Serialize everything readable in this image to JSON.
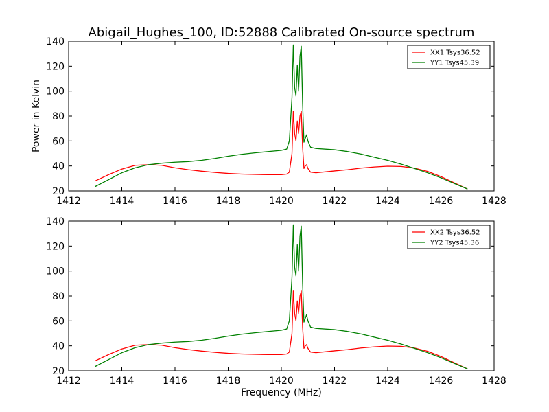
{
  "title": "Abigail_Hughes_100, ID:52888 Calibrated On-source spectrum",
  "xlabel": "Frequency (MHz)",
  "ylabel": "Power in Kelvin",
  "colors": {
    "xx": "#ff0000",
    "yy": "#008000"
  },
  "chart_data": [
    {
      "type": "line",
      "xlim": [
        1412,
        1428
      ],
      "ylim": [
        20,
        140
      ],
      "xticks": [
        "1412",
        "1414",
        "1416",
        "1418",
        "1420",
        "1422",
        "1424",
        "1426",
        "1428"
      ],
      "yticks": [
        "20",
        "40",
        "60",
        "80",
        "100",
        "120",
        "140"
      ],
      "legend_position": "top-right",
      "series": [
        {
          "name": "XX1 Tsys36.52",
          "color": "#ff0000",
          "points": [
            [
              1413.0,
              28
            ],
            [
              1413.5,
              33
            ],
            [
              1414.0,
              37.5
            ],
            [
              1414.5,
              40.5
            ],
            [
              1415.0,
              41
            ],
            [
              1415.5,
              40.5
            ],
            [
              1416.0,
              38.5
            ],
            [
              1416.5,
              37
            ],
            [
              1417.0,
              35.8
            ],
            [
              1417.5,
              34.8
            ],
            [
              1418.0,
              34
            ],
            [
              1418.5,
              33.5
            ],
            [
              1419.0,
              33.2
            ],
            [
              1419.5,
              33
            ],
            [
              1420.0,
              33
            ],
            [
              1420.2,
              33.5
            ],
            [
              1420.3,
              35
            ],
            [
              1420.4,
              50
            ],
            [
              1420.45,
              84
            ],
            [
              1420.5,
              66
            ],
            [
              1420.55,
              60
            ],
            [
              1420.6,
              76
            ],
            [
              1420.65,
              66
            ],
            [
              1420.7,
              80
            ],
            [
              1420.75,
              84
            ],
            [
              1420.8,
              55
            ],
            [
              1420.85,
              38
            ],
            [
              1420.9,
              40
            ],
            [
              1420.95,
              41
            ],
            [
              1421.0,
              38
            ],
            [
              1421.1,
              35
            ],
            [
              1421.3,
              34.5
            ],
            [
              1422.0,
              36
            ],
            [
              1422.5,
              37
            ],
            [
              1423.0,
              38.3
            ],
            [
              1423.5,
              39.2
            ],
            [
              1424.0,
              39.8
            ],
            [
              1424.5,
              39.6
            ],
            [
              1425.0,
              38.3
            ],
            [
              1425.5,
              35.6
            ],
            [
              1426.0,
              31.5
            ],
            [
              1426.5,
              26.5
            ],
            [
              1427.0,
              21.5
            ]
          ]
        },
        {
          "name": "YY1 Tsys45.39",
          "color": "#008000",
          "points": [
            [
              1413.0,
              23.5
            ],
            [
              1413.5,
              29
            ],
            [
              1414.0,
              34.5
            ],
            [
              1414.5,
              38.5
            ],
            [
              1415.0,
              41
            ],
            [
              1415.5,
              42.2
            ],
            [
              1416.0,
              43
            ],
            [
              1416.5,
              43.5
            ],
            [
              1417.0,
              44.5
            ],
            [
              1417.5,
              46
            ],
            [
              1418.0,
              47.8
            ],
            [
              1418.5,
              49.3
            ],
            [
              1419.0,
              50.5
            ],
            [
              1419.5,
              51.5
            ],
            [
              1420.0,
              52.5
            ],
            [
              1420.2,
              53.5
            ],
            [
              1420.3,
              60
            ],
            [
              1420.4,
              95
            ],
            [
              1420.45,
              137
            ],
            [
              1420.5,
              103
            ],
            [
              1420.55,
              96
            ],
            [
              1420.6,
              121
            ],
            [
              1420.65,
              100
            ],
            [
              1420.7,
              128
            ],
            [
              1420.75,
              136
            ],
            [
              1420.8,
              90
            ],
            [
              1420.85,
              59
            ],
            [
              1420.9,
              62
            ],
            [
              1420.95,
              65
            ],
            [
              1421.0,
              60
            ],
            [
              1421.1,
              55
            ],
            [
              1421.3,
              54
            ],
            [
              1422.0,
              53
            ],
            [
              1422.5,
              51.5
            ],
            [
              1423.0,
              49.5
            ],
            [
              1423.5,
              47
            ],
            [
              1424.0,
              44.5
            ],
            [
              1424.5,
              41.5
            ],
            [
              1425.0,
              38
            ],
            [
              1425.5,
              34.5
            ],
            [
              1426.0,
              30.5
            ],
            [
              1426.5,
              26
            ],
            [
              1427.0,
              21.5
            ]
          ]
        }
      ]
    },
    {
      "type": "line",
      "xlim": [
        1412,
        1428
      ],
      "ylim": [
        20,
        140
      ],
      "xticks": [
        "1412",
        "1414",
        "1416",
        "1418",
        "1420",
        "1422",
        "1424",
        "1426",
        "1428"
      ],
      "yticks": [
        "20",
        "40",
        "60",
        "80",
        "100",
        "120",
        "140"
      ],
      "legend_position": "top-right",
      "series": [
        {
          "name": "XX2 Tsys36.52",
          "color": "#ff0000",
          "points": [
            [
              1413.0,
              28
            ],
            [
              1413.5,
              33
            ],
            [
              1414.0,
              37.5
            ],
            [
              1414.5,
              40.5
            ],
            [
              1415.0,
              41
            ],
            [
              1415.5,
              40.5
            ],
            [
              1416.0,
              38.5
            ],
            [
              1416.5,
              37
            ],
            [
              1417.0,
              35.8
            ],
            [
              1417.5,
              34.8
            ],
            [
              1418.0,
              34
            ],
            [
              1418.5,
              33.5
            ],
            [
              1419.0,
              33.2
            ],
            [
              1419.5,
              33
            ],
            [
              1420.0,
              33
            ],
            [
              1420.2,
              33.5
            ],
            [
              1420.3,
              35
            ],
            [
              1420.4,
              50
            ],
            [
              1420.45,
              84
            ],
            [
              1420.5,
              66
            ],
            [
              1420.55,
              60
            ],
            [
              1420.6,
              76
            ],
            [
              1420.65,
              66
            ],
            [
              1420.7,
              80
            ],
            [
              1420.75,
              84
            ],
            [
              1420.8,
              55
            ],
            [
              1420.85,
              38
            ],
            [
              1420.9,
              40
            ],
            [
              1420.95,
              41
            ],
            [
              1421.0,
              38
            ],
            [
              1421.1,
              35
            ],
            [
              1421.3,
              34.5
            ],
            [
              1422.0,
              36
            ],
            [
              1422.5,
              37
            ],
            [
              1423.0,
              38.3
            ],
            [
              1423.5,
              39.2
            ],
            [
              1424.0,
              39.8
            ],
            [
              1424.5,
              39.6
            ],
            [
              1425.0,
              38.3
            ],
            [
              1425.5,
              35.6
            ],
            [
              1426.0,
              31.5
            ],
            [
              1426.5,
              26.5
            ],
            [
              1427.0,
              21.5
            ]
          ]
        },
        {
          "name": "YY2 Tsys45.36",
          "color": "#008000",
          "points": [
            [
              1413.0,
              23.5
            ],
            [
              1413.5,
              29
            ],
            [
              1414.0,
              34.5
            ],
            [
              1414.5,
              38.5
            ],
            [
              1415.0,
              41
            ],
            [
              1415.5,
              42.2
            ],
            [
              1416.0,
              43
            ],
            [
              1416.5,
              43.5
            ],
            [
              1417.0,
              44.5
            ],
            [
              1417.5,
              46
            ],
            [
              1418.0,
              47.8
            ],
            [
              1418.5,
              49.3
            ],
            [
              1419.0,
              50.5
            ],
            [
              1419.5,
              51.5
            ],
            [
              1420.0,
              52.5
            ],
            [
              1420.2,
              53.5
            ],
            [
              1420.3,
              60
            ],
            [
              1420.4,
              95
            ],
            [
              1420.45,
              137
            ],
            [
              1420.5,
              103
            ],
            [
              1420.55,
              96
            ],
            [
              1420.6,
              121
            ],
            [
              1420.65,
              100
            ],
            [
              1420.7,
              128
            ],
            [
              1420.75,
              136
            ],
            [
              1420.8,
              90
            ],
            [
              1420.85,
              59
            ],
            [
              1420.9,
              62
            ],
            [
              1420.95,
              65
            ],
            [
              1421.0,
              60
            ],
            [
              1421.1,
              55
            ],
            [
              1421.3,
              54
            ],
            [
              1422.0,
              53
            ],
            [
              1422.5,
              51.5
            ],
            [
              1423.0,
              49.5
            ],
            [
              1423.5,
              47
            ],
            [
              1424.0,
              44.5
            ],
            [
              1424.5,
              41.5
            ],
            [
              1425.0,
              38
            ],
            [
              1425.5,
              34.5
            ],
            [
              1426.0,
              30.5
            ],
            [
              1426.5,
              26
            ],
            [
              1427.0,
              21.5
            ]
          ]
        }
      ]
    }
  ]
}
